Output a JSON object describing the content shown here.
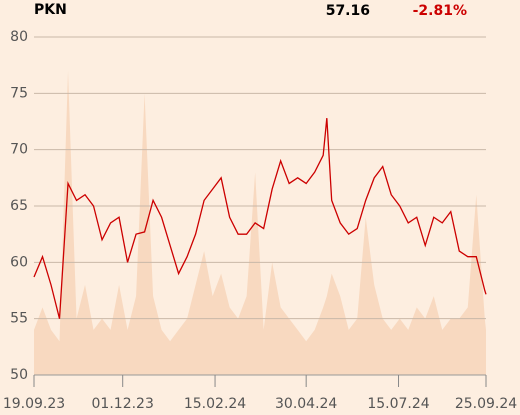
{
  "chart_data": {
    "type": "line",
    "title": "PKN",
    "last_price": 57.16,
    "change": {
      "value": -2.81,
      "label": "-2.81%"
    },
    "x": [
      "19.09.23",
      "26.09.23",
      "03.10.23",
      "10.10.23",
      "17.10.23",
      "24.10.23",
      "31.10.23",
      "07.11.23",
      "14.11.23",
      "21.11.23",
      "28.11.23",
      "05.12.23",
      "12.12.23",
      "19.12.23",
      "26.12.23",
      "02.01.24",
      "09.01.24",
      "16.01.24",
      "23.01.24",
      "30.01.24",
      "06.02.24",
      "13.02.24",
      "20.02.24",
      "27.02.24",
      "05.03.24",
      "12.03.24",
      "19.03.24",
      "26.03.24",
      "02.04.24",
      "09.04.24",
      "16.04.24",
      "23.04.24",
      "30.04.24",
      "07.05.24",
      "14.05.24",
      "17.05.24",
      "21.05.24",
      "28.05.24",
      "04.06.24",
      "11.06.24",
      "18.06.24",
      "25.06.24",
      "02.07.24",
      "09.07.24",
      "16.07.24",
      "23.07.24",
      "30.07.24",
      "06.08.24",
      "13.08.24",
      "20.08.24",
      "27.08.24",
      "03.09.24",
      "10.09.24",
      "17.09.24",
      "24.09.24",
      "25.09.24"
    ],
    "values": [
      58.7,
      60.5,
      58,
      55,
      67,
      65.5,
      66,
      65,
      62,
      63.5,
      64,
      60,
      62.5,
      62.7,
      65.5,
      64,
      61.5,
      59,
      60.5,
      62.5,
      65.5,
      66.5,
      67.5,
      64,
      62.5,
      62.5,
      63.5,
      63,
      66.5,
      69,
      67,
      67.5,
      67,
      68,
      69.5,
      72.8,
      65.5,
      63.5,
      62.5,
      63,
      65.5,
      67.5,
      68.5,
      66,
      65,
      63.5,
      64,
      61.5,
      64,
      63.5,
      64.5,
      61,
      60.5,
      60.5,
      57.5,
      57.16
    ],
    "area_values": [
      54,
      56,
      54,
      53,
      77,
      55,
      58,
      54,
      55,
      54,
      58,
      54,
      57,
      75,
      57,
      54,
      53,
      54,
      55,
      58,
      61,
      57,
      59,
      56,
      55,
      57,
      68,
      54,
      60,
      56,
      55,
      54,
      53,
      54,
      56,
      57,
      59,
      57,
      54,
      55,
      64,
      58,
      55,
      54,
      55,
      54,
      56,
      55,
      57,
      54,
      55,
      55,
      56,
      66,
      55,
      54
    ],
    "color": "#cc0000",
    "area_color": "#f8d9c0",
    "change_color": "#cc0000",
    "xlim": [
      "19.09.23",
      "25.09.24"
    ],
    "xticks": [
      "19.09.23",
      "01.12.23",
      "15.02.24",
      "30.04.24",
      "15.07.24",
      "25.09.24"
    ],
    "ylim": [
      50,
      80
    ],
    "yticks": [
      50,
      55,
      60,
      65,
      70,
      75,
      80
    ],
    "grid": true
  }
}
